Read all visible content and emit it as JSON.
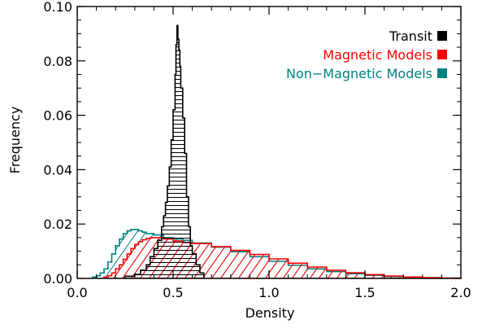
{
  "chart_data": {
    "type": "histogram",
    "xlabel": "Density",
    "ylabel": "Frequency",
    "xlim": [
      0.0,
      2.0
    ],
    "ylim": [
      0.0,
      0.1
    ],
    "x_ticks": [
      "0.0",
      "0.5",
      "1.0",
      "1.5",
      "2.0"
    ],
    "y_ticks": [
      "0.00",
      "0.02",
      "0.04",
      "0.06",
      "0.08",
      "0.10"
    ],
    "grid": false,
    "legend_position": "top-right",
    "legend": [
      {
        "label": "Transit",
        "color": "#000000"
      },
      {
        "label": "Magnetic Models",
        "color": "#ff0000"
      },
      {
        "label": "Non−Magnetic Models",
        "color": "#008080"
      }
    ],
    "series": [
      {
        "name": "Non−Magnetic Models",
        "color": "#008080",
        "hatch": "diagonal",
        "points": [
          [
            0.06,
            0.0
          ],
          [
            0.08,
            0.0005
          ],
          [
            0.1,
            0.001
          ],
          [
            0.12,
            0.002
          ],
          [
            0.14,
            0.0035
          ],
          [
            0.16,
            0.006
          ],
          [
            0.18,
            0.009
          ],
          [
            0.2,
            0.012
          ],
          [
            0.22,
            0.0145
          ],
          [
            0.24,
            0.0165
          ],
          [
            0.26,
            0.0175
          ],
          [
            0.28,
            0.018
          ],
          [
            0.3,
            0.018
          ],
          [
            0.32,
            0.0175
          ],
          [
            0.34,
            0.017
          ],
          [
            0.36,
            0.0165
          ],
          [
            0.4,
            0.016
          ],
          [
            0.45,
            0.015
          ],
          [
            0.5,
            0.0145
          ],
          [
            0.55,
            0.014
          ],
          [
            0.6,
            0.013
          ],
          [
            0.7,
            0.0115
          ],
          [
            0.8,
            0.0098
          ],
          [
            0.9,
            0.008
          ],
          [
            1.0,
            0.0063
          ],
          [
            1.1,
            0.0048
          ],
          [
            1.2,
            0.0035
          ],
          [
            1.3,
            0.0025
          ],
          [
            1.4,
            0.0017
          ],
          [
            1.5,
            0.0011
          ],
          [
            1.6,
            0.0007
          ],
          [
            1.7,
            0.0004
          ],
          [
            1.8,
            0.0002
          ],
          [
            1.9,
            0.0001
          ],
          [
            2.0,
            0.0
          ]
        ]
      },
      {
        "name": "Magnetic Models",
        "color": "#ff0000",
        "hatch": "diagonal",
        "points": [
          [
            0.12,
            0.0
          ],
          [
            0.14,
            0.0005
          ],
          [
            0.16,
            0.001
          ],
          [
            0.18,
            0.002
          ],
          [
            0.2,
            0.0035
          ],
          [
            0.22,
            0.005
          ],
          [
            0.24,
            0.007
          ],
          [
            0.26,
            0.009
          ],
          [
            0.28,
            0.011
          ],
          [
            0.3,
            0.0125
          ],
          [
            0.32,
            0.0135
          ],
          [
            0.34,
            0.0142
          ],
          [
            0.36,
            0.0147
          ],
          [
            0.38,
            0.015
          ],
          [
            0.4,
            0.015
          ],
          [
            0.45,
            0.0145
          ],
          [
            0.5,
            0.0138
          ],
          [
            0.55,
            0.0132
          ],
          [
            0.6,
            0.0128
          ],
          [
            0.7,
            0.0117
          ],
          [
            0.8,
            0.0103
          ],
          [
            0.9,
            0.0088
          ],
          [
            1.0,
            0.0072
          ],
          [
            1.1,
            0.0056
          ],
          [
            1.2,
            0.0042
          ],
          [
            1.3,
            0.003
          ],
          [
            1.4,
            0.0021
          ],
          [
            1.5,
            0.0014
          ],
          [
            1.6,
            0.0009
          ],
          [
            1.7,
            0.0005
          ],
          [
            1.8,
            0.0003
          ],
          [
            1.9,
            0.0001
          ],
          [
            2.0,
            0.0
          ]
        ]
      },
      {
        "name": "Transit",
        "color": "#000000",
        "hatch": "horizontal",
        "points": [
          [
            0.24,
            0.0
          ],
          [
            0.25,
            0.0008
          ],
          [
            0.3,
            0.0015
          ],
          [
            0.33,
            0.003
          ],
          [
            0.36,
            0.005
          ],
          [
            0.38,
            0.008
          ],
          [
            0.4,
            0.011
          ],
          [
            0.42,
            0.014
          ],
          [
            0.44,
            0.019
          ],
          [
            0.45,
            0.023
          ],
          [
            0.46,
            0.028
          ],
          [
            0.47,
            0.034
          ],
          [
            0.48,
            0.041
          ],
          [
            0.49,
            0.051
          ],
          [
            0.5,
            0.062
          ],
          [
            0.51,
            0.075
          ],
          [
            0.515,
            0.086
          ],
          [
            0.52,
            0.093
          ],
          [
            0.525,
            0.088
          ],
          [
            0.53,
            0.084
          ],
          [
            0.535,
            0.078
          ],
          [
            0.54,
            0.07
          ],
          [
            0.55,
            0.059
          ],
          [
            0.56,
            0.046
          ],
          [
            0.57,
            0.03
          ],
          [
            0.58,
            0.019
          ],
          [
            0.59,
            0.012
          ],
          [
            0.6,
            0.009
          ],
          [
            0.62,
            0.005
          ],
          [
            0.64,
            0.002
          ],
          [
            0.66,
            0.0
          ]
        ]
      }
    ]
  }
}
